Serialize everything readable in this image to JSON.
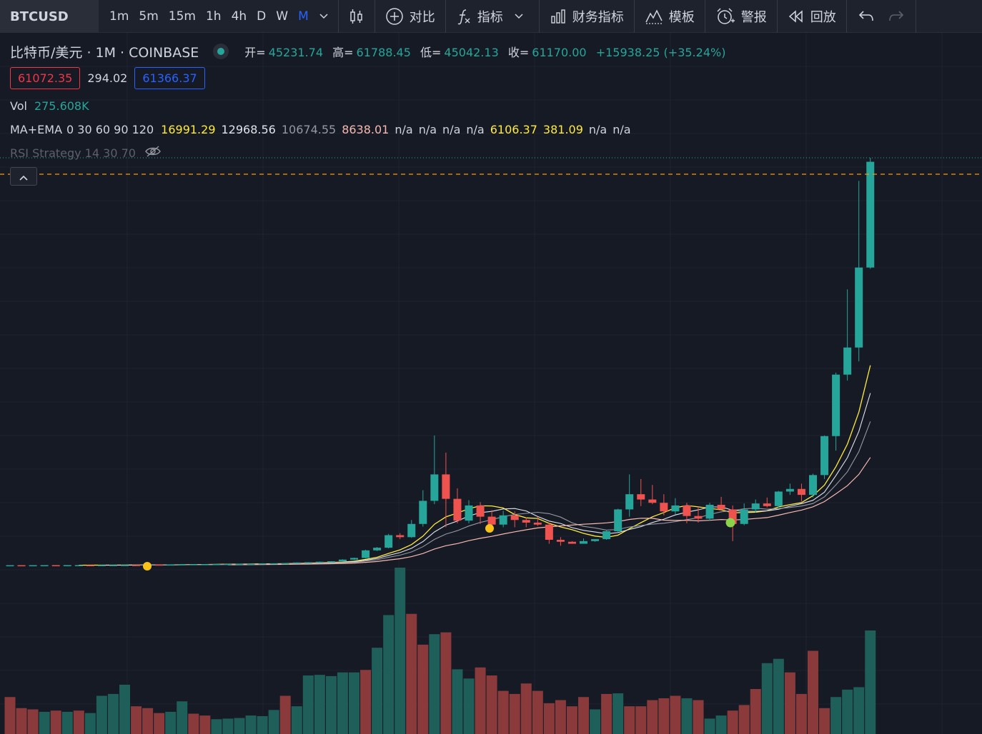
{
  "toolbar": {
    "symbol": "BTCUSD",
    "timeframes": [
      "1m",
      "5m",
      "15m",
      "1h",
      "4h",
      "D",
      "W",
      "M"
    ],
    "active_timeframe": "M",
    "compare_label": "对比",
    "indicators_label": "指标",
    "financials_label": "财务指标",
    "templates_label": "模板",
    "alerts_label": "警报",
    "replay_label": "回放"
  },
  "legend": {
    "name": "比特币/美元 · 1M · COINBASE",
    "open_label": "开=",
    "open": "45231.74",
    "high_label": "高=",
    "high": "61788.45",
    "low_label": "低=",
    "low": "45042.13",
    "close_label": "收=",
    "close": "61170.00",
    "change": "+15938.25 (+35.24%)",
    "sell_price": "61072.35",
    "spread": "294.02",
    "buy_price": "61366.37"
  },
  "indicators": {
    "vol_label": "Vol",
    "vol_value": "275.608K",
    "ma_name": "MA+EMA",
    "ma_params": "0 30 60 90 120",
    "ma_values": [
      {
        "v": "16991.29",
        "color": "#ffeb3b"
      },
      {
        "v": "12968.56",
        "color": "#e0e3eb"
      },
      {
        "v": "10674.55",
        "color": "#9598a1"
      },
      {
        "v": "8638.01",
        "color": "#f7b9b0"
      },
      {
        "v": "n/a",
        "color": "#d1d4dc"
      },
      {
        "v": "n/a",
        "color": "#d1d4dc"
      },
      {
        "v": "n/a",
        "color": "#d1d4dc"
      },
      {
        "v": "n/a",
        "color": "#d1d4dc"
      },
      {
        "v": "6106.37",
        "color": "#ffeb3b"
      },
      {
        "v": "381.09",
        "color": "#ffeb3b"
      },
      {
        "v": "n/a",
        "color": "#d1d4dc"
      },
      {
        "v": "n/a",
        "color": "#d1d4dc"
      }
    ],
    "rsi_name": "RSI Strategy 14 30 70"
  },
  "colors": {
    "up": "#26a69a",
    "down": "#ef5350",
    "up_vol": "#1f5f5a",
    "down_vol": "#8a3a3a",
    "background": "#161a25",
    "price_line": "#ff9800"
  },
  "chart_data": {
    "type": "candlestick",
    "interval": "1M",
    "ylim": [
      0,
      70000
    ],
    "candles": [
      [
        150,
        155,
        148,
        152
      ],
      [
        152,
        154,
        147,
        149
      ],
      [
        149,
        155,
        148,
        153
      ],
      [
        153,
        160,
        150,
        158
      ],
      [
        158,
        160,
        152,
        154
      ],
      [
        154,
        165,
        151,
        162
      ],
      [
        162,
        170,
        158,
        167
      ],
      [
        167,
        172,
        162,
        165
      ],
      [
        165,
        178,
        163,
        175
      ],
      [
        175,
        185,
        172,
        182
      ],
      [
        182,
        190,
        178,
        187
      ],
      [
        187,
        195,
        183,
        180
      ],
      [
        180,
        250,
        178,
        245
      ],
      [
        245,
        260,
        235,
        240
      ],
      [
        240,
        265,
        235,
        258
      ],
      [
        258,
        300,
        255,
        295
      ],
      [
        295,
        320,
        285,
        310
      ],
      [
        310,
        330,
        300,
        315
      ],
      [
        315,
        340,
        310,
        330
      ],
      [
        330,
        360,
        320,
        350
      ],
      [
        350,
        370,
        340,
        360
      ],
      [
        360,
        380,
        350,
        370
      ],
      [
        370,
        430,
        360,
        425
      ],
      [
        425,
        450,
        410,
        440
      ],
      [
        440,
        460,
        420,
        445
      ],
      [
        445,
        580,
        440,
        570
      ],
      [
        570,
        620,
        560,
        610
      ],
      [
        610,
        700,
        600,
        680
      ],
      [
        680,
        760,
        670,
        750
      ],
      [
        750,
        1050,
        740,
        1000
      ],
      [
        1000,
        1300,
        950,
        1250
      ],
      [
        1250,
        2500,
        1200,
        2400
      ],
      [
        2400,
        2900,
        2300,
        2800
      ],
      [
        2800,
        4900,
        2700,
        4700
      ],
      [
        4700,
        5000,
        4100,
        4400
      ],
      [
        4400,
        7000,
        4300,
        6400
      ],
      [
        6400,
        11500,
        6000,
        9900
      ],
      [
        9900,
        19800,
        9400,
        13900
      ],
      [
        13900,
        17200,
        5900,
        10200
      ],
      [
        10200,
        11800,
        6500,
        6900
      ],
      [
        6900,
        10000,
        6500,
        9200
      ],
      [
        9200,
        9700,
        6400,
        7500
      ],
      [
        7500,
        8500,
        5800,
        6300
      ],
      [
        6300,
        8400,
        5900,
        7700
      ],
      [
        7700,
        8300,
        5900,
        7000
      ],
      [
        7000,
        7400,
        5900,
        6600
      ],
      [
        6600,
        7500,
        6100,
        6300
      ],
      [
        6300,
        6600,
        3400,
        4000
      ],
      [
        4000,
        4400,
        3100,
        3700
      ],
      [
        3700,
        3800,
        3400,
        3400
      ],
      [
        3400,
        4200,
        3400,
        3800
      ],
      [
        3800,
        4100,
        3700,
        4100
      ],
      [
        4100,
        5500,
        4000,
        5300
      ],
      [
        5300,
        8700,
        5200,
        8600
      ],
      [
        8600,
        13900,
        7500,
        10900
      ],
      [
        10900,
        13200,
        9100,
        10100
      ],
      [
        10100,
        12300,
        9400,
        9600
      ],
      [
        9600,
        10900,
        7700,
        8300
      ],
      [
        8300,
        10300,
        7800,
        9200
      ],
      [
        9200,
        9600,
        6500,
        7600
      ],
      [
        7600,
        9000,
        6600,
        7200
      ],
      [
        7200,
        9600,
        6900,
        9300
      ],
      [
        9300,
        10500,
        8500,
        8600
      ],
      [
        8600,
        9200,
        3800,
        6400
      ],
      [
        6400,
        9500,
        6200,
        8600
      ],
      [
        8600,
        10100,
        8100,
        9500
      ],
      [
        9500,
        10400,
        8900,
        9100
      ],
      [
        9100,
        11400,
        8900,
        11300
      ],
      [
        11300,
        12500,
        10800,
        11700
      ],
      [
        11700,
        12500,
        9800,
        10800
      ],
      [
        10800,
        14000,
        10400,
        13800
      ],
      [
        13800,
        19800,
        13200,
        19700
      ],
      [
        19700,
        29300,
        17500,
        29000
      ],
      [
        29000,
        41900,
        28100,
        33100
      ],
      [
        33100,
        58300,
        31000,
        45200
      ],
      [
        45200,
        61800,
        45000,
        61200
      ]
    ],
    "volumes": [
      [
        60,
        "down"
      ],
      [
        42,
        "down"
      ],
      [
        40,
        "down"
      ],
      [
        36,
        "up"
      ],
      [
        38,
        "down"
      ],
      [
        36,
        "up"
      ],
      [
        38,
        "down"
      ],
      [
        34,
        "up"
      ],
      [
        62,
        "up"
      ],
      [
        65,
        "up"
      ],
      [
        80,
        "up"
      ],
      [
        45,
        "down"
      ],
      [
        42,
        "down"
      ],
      [
        34,
        "down"
      ],
      [
        36,
        "up"
      ],
      [
        53,
        "up"
      ],
      [
        33,
        "down"
      ],
      [
        30,
        "down"
      ],
      [
        24,
        "up"
      ],
      [
        25,
        "up"
      ],
      [
        26,
        "up"
      ],
      [
        30,
        "up"
      ],
      [
        29,
        "up"
      ],
      [
        39,
        "up"
      ],
      [
        62,
        "down"
      ],
      [
        45,
        "up"
      ],
      [
        95,
        "up"
      ],
      [
        96,
        "up"
      ],
      [
        94,
        "up"
      ],
      [
        100,
        "up"
      ],
      [
        100,
        "up"
      ],
      [
        104,
        "down"
      ],
      [
        140,
        "up"
      ],
      [
        193,
        "up"
      ],
      [
        270,
        "up"
      ],
      [
        195,
        "down"
      ],
      [
        145,
        "down"
      ],
      [
        162,
        "up"
      ],
      [
        165,
        "down"
      ],
      [
        105,
        "up"
      ],
      [
        90,
        "up"
      ],
      [
        108,
        "down"
      ],
      [
        95,
        "down"
      ],
      [
        70,
        "down"
      ],
      [
        65,
        "down"
      ],
      [
        82,
        "down"
      ],
      [
        70,
        "down"
      ],
      [
        50,
        "down"
      ],
      [
        55,
        "down"
      ],
      [
        45,
        "down"
      ],
      [
        60,
        "down"
      ],
      [
        40,
        "up"
      ],
      [
        65,
        "down"
      ],
      [
        66,
        "up"
      ],
      [
        45,
        "down"
      ],
      [
        45,
        "down"
      ],
      [
        55,
        "down"
      ],
      [
        58,
        "down"
      ],
      [
        62,
        "down"
      ],
      [
        58,
        "up"
      ],
      [
        55,
        "down"
      ],
      [
        25,
        "up"
      ],
      [
        30,
        "up"
      ],
      [
        38,
        "down"
      ],
      [
        47,
        "down"
      ],
      [
        73,
        "down"
      ],
      [
        115,
        "up"
      ],
      [
        122,
        "up"
      ],
      [
        100,
        "down"
      ],
      [
        65,
        "down"
      ],
      [
        135,
        "down"
      ],
      [
        42,
        "down"
      ],
      [
        60,
        "up"
      ],
      [
        72,
        "up"
      ],
      [
        76,
        "up"
      ],
      [
        168,
        "up"
      ]
    ]
  }
}
